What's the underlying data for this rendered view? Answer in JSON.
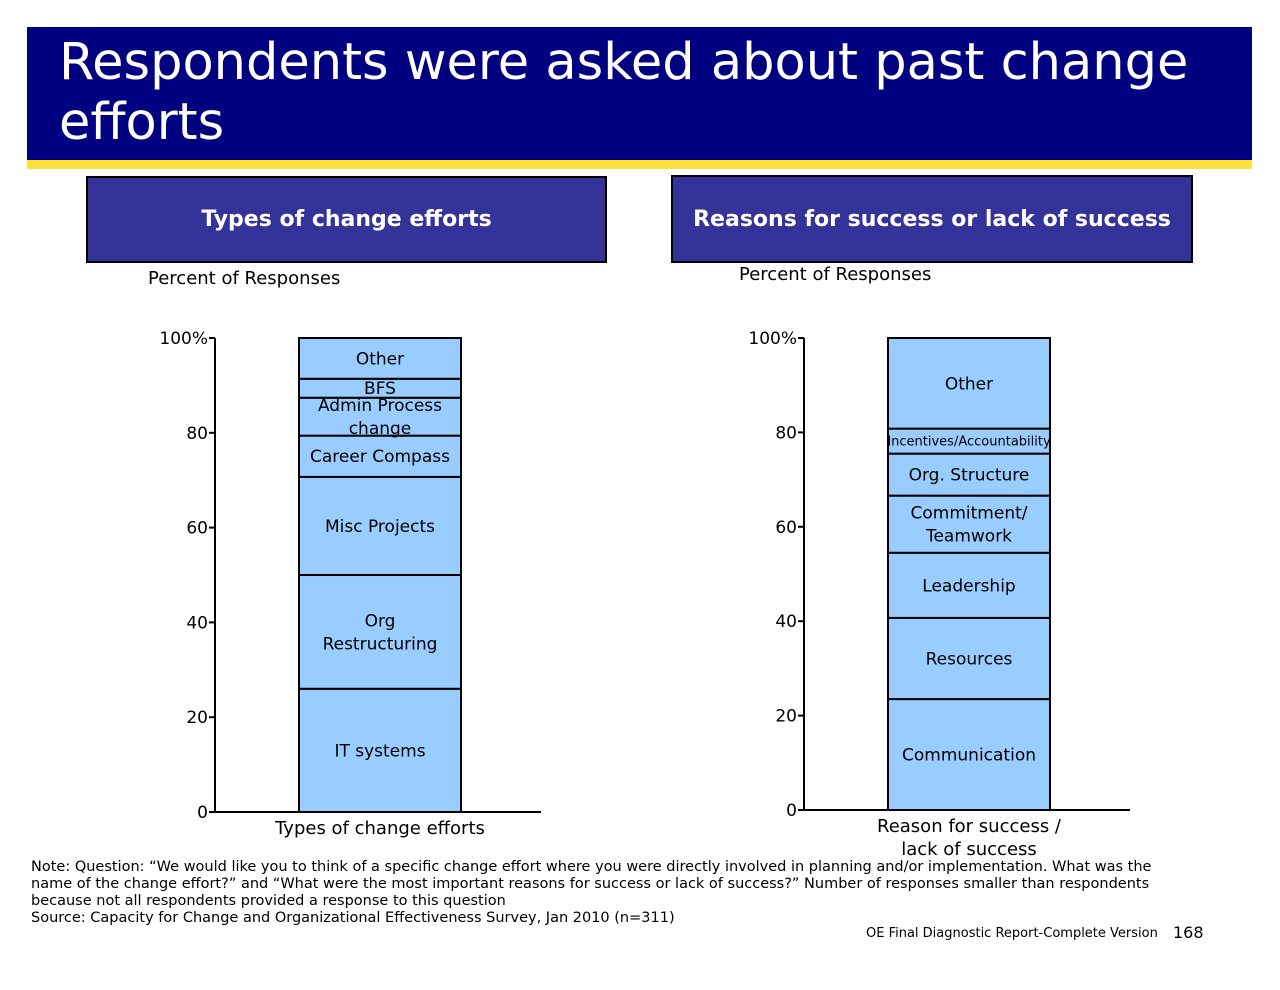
{
  "title": "Respondents were asked about past change efforts",
  "panels": {
    "left_heading": "Types of change efforts",
    "right_heading": "Reasons for success or lack of success"
  },
  "chart_data": [
    {
      "type": "bar",
      "stacked": true,
      "ylabel": "Percent of Responses",
      "xlabel": "Types of change efforts",
      "ylim": [
        0,
        100
      ],
      "yticks": [
        "0",
        "20",
        "40",
        "60",
        "80",
        "100%"
      ],
      "fill_color": "#99ccff",
      "segments": [
        {
          "label": "IT systems",
          "value": 26
        },
        {
          "label": "Org Restructuring",
          "value": 24
        },
        {
          "label": "Misc Projects",
          "value": 20.7
        },
        {
          "label": "Career Compass",
          "value": 8.7
        },
        {
          "label": "Admin Process change",
          "value": 8
        },
        {
          "label": "BFS",
          "value": 4
        },
        {
          "label": "Other",
          "value": 8.6
        }
      ]
    },
    {
      "type": "bar",
      "stacked": true,
      "ylabel": "Percent of Responses",
      "xlabel": "Reason for success / lack of success",
      "ylim": [
        0,
        100
      ],
      "yticks": [
        "0",
        "20",
        "40",
        "60",
        "80",
        "100%"
      ],
      "fill_color": "#99ccff",
      "segments": [
        {
          "label": "Communication",
          "value": 23.5
        },
        {
          "label": "Resources",
          "value": 17.2
        },
        {
          "label": "Leadership",
          "value": 13.8
        },
        {
          "label": "Commitment/ Teamwork",
          "value": 12.1
        },
        {
          "label": "Org. Structure",
          "value": 8.9
        },
        {
          "label": "Incentives/Accountability",
          "value": 5.3
        },
        {
          "label": "Other",
          "value": 19.2
        }
      ]
    }
  ],
  "note": "Note: Question: “We would like you to think of a specific change effort where you were directly involved in planning and/or implementation. What was the name of the change effort?” and “What were the most important reasons for success or lack of success?” Number of responses smaller than respondents because not all respondents provided a response to this question",
  "source": "Source: Capacity for Change and Organizational Effectiveness Survey, Jan 2010 (n=311)",
  "footer": {
    "report_label": "OE Final Diagnostic Report-Complete Version",
    "page_number": "168"
  }
}
